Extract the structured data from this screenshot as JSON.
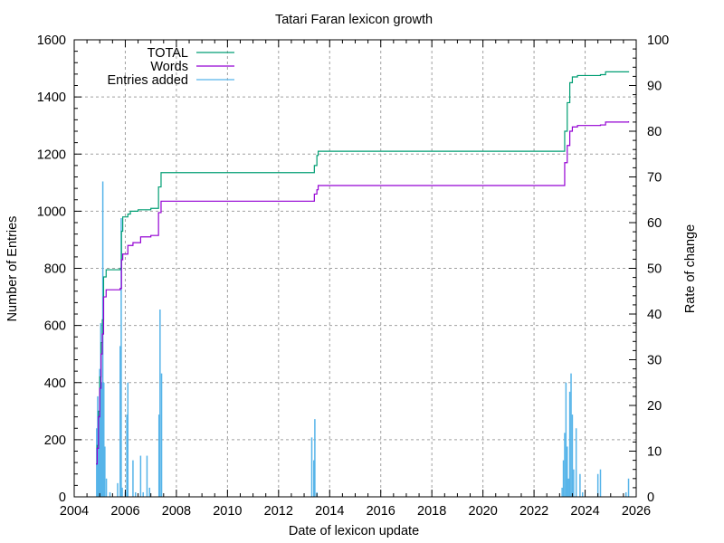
{
  "chart_data": {
    "type": "line",
    "title": "Tatari Faran lexicon growth",
    "xlabel": "Date of lexicon update",
    "ylabel": "Number of Entries",
    "y2label": "Rate of change",
    "xlim": [
      2004,
      2026
    ],
    "ylim": [
      0,
      1600
    ],
    "y2lim": [
      0,
      100
    ],
    "x_ticks": [
      2004,
      2006,
      2008,
      2010,
      2012,
      2014,
      2016,
      2018,
      2020,
      2022,
      2024,
      2026
    ],
    "y_ticks": [
      0,
      200,
      400,
      600,
      800,
      1000,
      1200,
      1400,
      1600
    ],
    "y2_ticks": [
      0,
      10,
      20,
      30,
      40,
      50,
      60,
      70,
      80,
      90,
      100
    ],
    "grid": true,
    "legend_position": "top-left",
    "colors": {
      "TOTAL": "#009e73",
      "Words": "#9400d3",
      "Entries added": "#56b4e9"
    },
    "series": [
      {
        "name": "TOTAL",
        "axis": "left",
        "style": "step",
        "points": [
          [
            2004.85,
            115
          ],
          [
            2004.9,
            180
          ],
          [
            2004.95,
            300
          ],
          [
            2005.0,
            420
          ],
          [
            2005.05,
            540
          ],
          [
            2005.1,
            620
          ],
          [
            2005.15,
            770
          ],
          [
            2005.25,
            795
          ],
          [
            2005.8,
            800
          ],
          [
            2005.85,
            930
          ],
          [
            2005.9,
            980
          ],
          [
            2006.1,
            990
          ],
          [
            2006.2,
            1000
          ],
          [
            2006.5,
            1005
          ],
          [
            2007.0,
            1010
          ],
          [
            2007.3,
            1085
          ],
          [
            2007.4,
            1135
          ],
          [
            2013.3,
            1135
          ],
          [
            2013.4,
            1160
          ],
          [
            2013.5,
            1195
          ],
          [
            2013.55,
            1210
          ],
          [
            2023.1,
            1210
          ],
          [
            2023.2,
            1280
          ],
          [
            2023.3,
            1380
          ],
          [
            2023.4,
            1450
          ],
          [
            2023.5,
            1470
          ],
          [
            2023.7,
            1475
          ],
          [
            2024.6,
            1478
          ],
          [
            2024.8,
            1488
          ],
          [
            2025.7,
            1490
          ]
        ]
      },
      {
        "name": "Words",
        "axis": "left",
        "style": "step",
        "points": [
          [
            2004.85,
            115
          ],
          [
            2004.9,
            170
          ],
          [
            2004.95,
            280
          ],
          [
            2005.0,
            380
          ],
          [
            2005.05,
            500
          ],
          [
            2005.1,
            570
          ],
          [
            2005.15,
            700
          ],
          [
            2005.25,
            725
          ],
          [
            2005.8,
            730
          ],
          [
            2005.85,
            830
          ],
          [
            2005.9,
            850
          ],
          [
            2006.1,
            880
          ],
          [
            2006.3,
            890
          ],
          [
            2006.6,
            910
          ],
          [
            2007.0,
            915
          ],
          [
            2007.3,
            995
          ],
          [
            2007.4,
            1035
          ],
          [
            2013.3,
            1035
          ],
          [
            2013.4,
            1060
          ],
          [
            2013.5,
            1075
          ],
          [
            2013.55,
            1090
          ],
          [
            2023.1,
            1090
          ],
          [
            2023.2,
            1170
          ],
          [
            2023.3,
            1230
          ],
          [
            2023.4,
            1280
          ],
          [
            2023.5,
            1295
          ],
          [
            2023.7,
            1300
          ],
          [
            2024.6,
            1302
          ],
          [
            2024.8,
            1312
          ],
          [
            2025.7,
            1315
          ]
        ]
      },
      {
        "name": "Entries added",
        "axis": "right",
        "style": "impulses",
        "points": [
          [
            2004.88,
            15
          ],
          [
            2004.92,
            22
          ],
          [
            2004.96,
            18
          ],
          [
            2005.0,
            28
          ],
          [
            2005.04,
            38
          ],
          [
            2005.08,
            25
          ],
          [
            2005.12,
            69
          ],
          [
            2005.16,
            25
          ],
          [
            2005.2,
            11
          ],
          [
            2005.26,
            4
          ],
          [
            2005.4,
            1
          ],
          [
            2005.7,
            3
          ],
          [
            2005.8,
            33
          ],
          [
            2005.84,
            61
          ],
          [
            2005.88,
            2
          ],
          [
            2006.0,
            1
          ],
          [
            2006.06,
            18
          ],
          [
            2006.1,
            25
          ],
          [
            2006.3,
            8
          ],
          [
            2006.4,
            1
          ],
          [
            2006.6,
            9
          ],
          [
            2006.7,
            1
          ],
          [
            2006.85,
            9
          ],
          [
            2006.95,
            2
          ],
          [
            2007.32,
            18
          ],
          [
            2007.36,
            41
          ],
          [
            2007.42,
            27
          ],
          [
            2013.3,
            13
          ],
          [
            2013.38,
            8
          ],
          [
            2013.42,
            17
          ],
          [
            2013.5,
            1
          ],
          [
            2023.1,
            2
          ],
          [
            2023.15,
            8
          ],
          [
            2023.2,
            14
          ],
          [
            2023.25,
            25
          ],
          [
            2023.3,
            11
          ],
          [
            2023.35,
            4
          ],
          [
            2023.4,
            23
          ],
          [
            2023.45,
            27
          ],
          [
            2023.5,
            18
          ],
          [
            2023.55,
            6
          ],
          [
            2023.65,
            15
          ],
          [
            2023.8,
            5
          ],
          [
            2023.9,
            1
          ],
          [
            2024.5,
            5
          ],
          [
            2024.6,
            6
          ],
          [
            2025.6,
            1
          ],
          [
            2025.7,
            4
          ]
        ]
      }
    ]
  }
}
